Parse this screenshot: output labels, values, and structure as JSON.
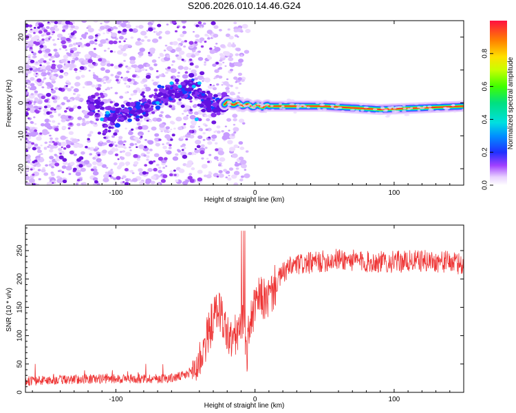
{
  "title": "S206.2026.010.14.46.G24",
  "chart_data": [
    {
      "type": "heatmap",
      "xlabel": "Height of straight line (km)",
      "ylabel": "Frequency (Hz)",
      "xlim": [
        -165,
        150
      ],
      "ylim": [
        -25,
        25
      ],
      "xticks": [
        -100,
        0,
        100
      ],
      "yticks": [
        -20,
        -10,
        0,
        10,
        20
      ],
      "description_ridge": [
        {
          "x": -110,
          "y": -5
        },
        {
          "x": -90,
          "y": -3
        },
        {
          "x": -60,
          "y": 3
        },
        {
          "x": -45,
          "y": 4
        },
        {
          "x": -30,
          "y": -1
        },
        {
          "x": -20,
          "y": 0
        },
        {
          "x": 0,
          "y": -1
        },
        {
          "x": 50,
          "y": -1
        },
        {
          "x": 90,
          "y": -2
        },
        {
          "x": 150,
          "y": -1
        }
      ],
      "colorbar": {
        "label": "Normalized spectral amplitude",
        "range": [
          0,
          1
        ],
        "ticks": [
          0.0,
          0.2,
          0.4,
          0.6,
          0.8
        ]
      }
    },
    {
      "type": "line",
      "color": "#ee3333",
      "xlabel": "Height of straight line (km)",
      "ylabel": "SNR (10 * v/v)",
      "xlim": [
        -165,
        150
      ],
      "ylim": [
        0,
        295
      ],
      "xticks": [
        -100,
        0,
        100
      ],
      "yticks": [
        0,
        50,
        100,
        150,
        200,
        250
      ],
      "series": [
        {
          "name": "SNR",
          "x": [
            -165,
            -140,
            -110,
            -80,
            -60,
            -50,
            -42,
            -38,
            -34,
            -30,
            -26,
            -22,
            -18,
            -14,
            -10,
            -8,
            -6,
            -4,
            0,
            4,
            8,
            12,
            16,
            20,
            25,
            30,
            40,
            60,
            80,
            100,
            120,
            140,
            150
          ],
          "y": [
            20,
            22,
            24,
            24,
            25,
            30,
            45,
            70,
            100,
            130,
            150,
            120,
            90,
            100,
            110,
            140,
            60,
            120,
            150,
            170,
            160,
            175,
            195,
            210,
            220,
            225,
            228,
            235,
            230,
            230,
            232,
            230,
            225
          ]
        }
      ]
    }
  ]
}
